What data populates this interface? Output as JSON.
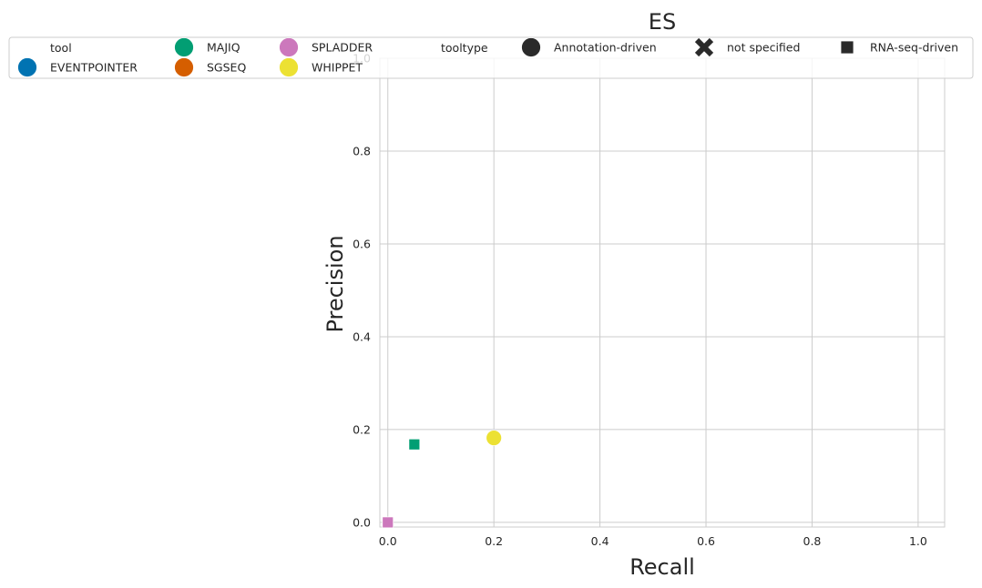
{
  "chart_data": {
    "type": "scatter",
    "title": "ES",
    "xlabel": "Recall",
    "ylabel": "Precision",
    "xlim": [
      -0.015,
      1.05
    ],
    "ylim": [
      -0.01,
      1.0
    ],
    "xticks": [
      "0.0",
      "0.2",
      "0.4",
      "0.6",
      "0.8",
      "1.0"
    ],
    "yticks": [
      "0.0",
      "0.2",
      "0.4",
      "0.6",
      "0.8",
      "1.0"
    ],
    "grid": true,
    "legend_placement": "top",
    "legend": {
      "hue_title": "tool",
      "tools": [
        {
          "name": "EVENTPOINTER",
          "color": "#0173b2"
        },
        {
          "name": "MAJIQ",
          "color": "#029e73"
        },
        {
          "name": "SGSEQ",
          "color": "#d55e00"
        },
        {
          "name": "SPLADDER",
          "color": "#cc78bc"
        },
        {
          "name": "WHIPPET",
          "color": "#ece133"
        }
      ],
      "style_title": "tooltype",
      "tooltypes": [
        {
          "name": "Annotation-driven",
          "marker": "circle"
        },
        {
          "name": "not specified",
          "marker": "x"
        },
        {
          "name": "RNA-seq-driven",
          "marker": "square"
        }
      ]
    },
    "points": [
      {
        "tool": "MAJIQ",
        "tooltype": "RNA-seq-driven",
        "x": 0.05,
        "y": 0.168
      },
      {
        "tool": "WHIPPET",
        "tooltype": "Annotation-driven",
        "x": 0.2,
        "y": 0.182
      },
      {
        "tool": "SPLADDER",
        "tooltype": "RNA-seq-driven",
        "x": 0.0,
        "y": 0.0
      }
    ]
  }
}
